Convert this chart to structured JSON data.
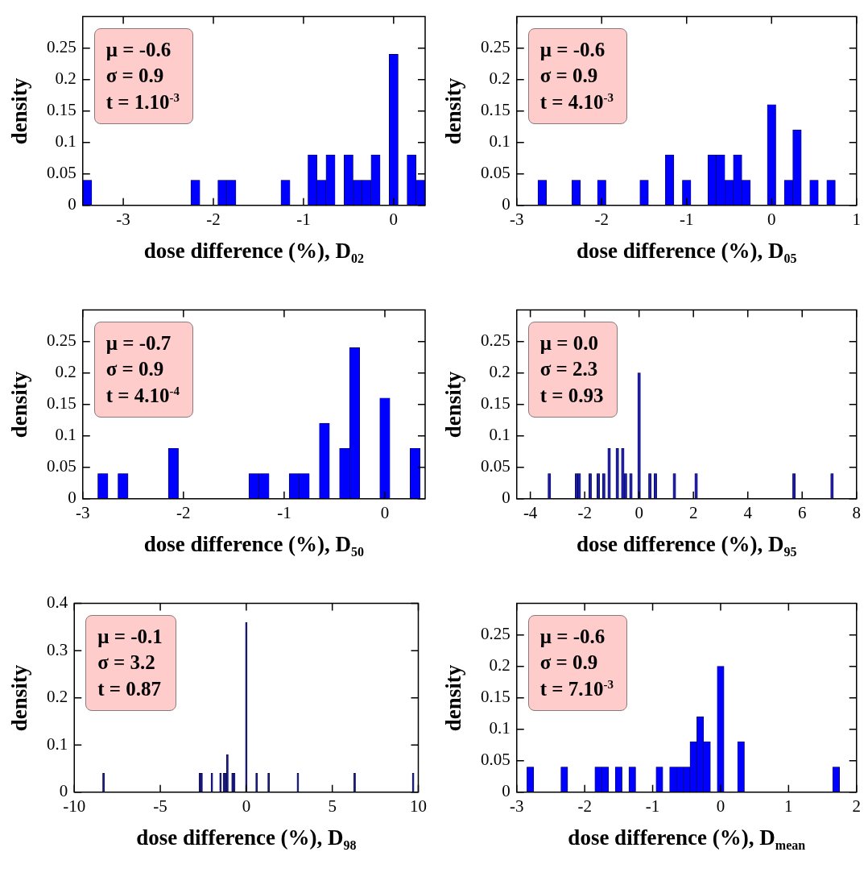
{
  "chart_data": [
    {
      "type": "histogram",
      "xlabel": "dose difference (%), D$_{02}$",
      "ylabel": "density",
      "color": "#0000ff",
      "xlim": [
        -3.45,
        0.35
      ],
      "xticks": [
        -3,
        -2,
        -1,
        0
      ],
      "ylim": [
        0,
        0.3
      ],
      "yticks": [
        0,
        0.05,
        0.1,
        0.15,
        0.2,
        0.25
      ],
      "annotations": [
        "μ = -0.6",
        "σ = 0.9",
        "t = 1.10$^{-3}$"
      ],
      "bins": [
        -3.45,
        -3.35,
        -3.25,
        -3.15,
        -3.05,
        -2.95,
        -2.85,
        -2.75,
        -2.65,
        -2.55,
        -2.45,
        -2.35,
        -2.25,
        -2.15,
        -2.05,
        -1.95,
        -1.85,
        -1.75,
        -1.65,
        -1.55,
        -1.45,
        -1.35,
        -1.25,
        -1.15,
        -1.05,
        -0.95,
        -0.85,
        -0.75,
        -0.65,
        -0.55,
        -0.45,
        -0.35,
        -0.25,
        -0.15,
        -0.05,
        0.05,
        0.15,
        0.25,
        0.35
      ],
      "values": [
        0.04,
        0,
        0,
        0,
        0,
        0,
        0,
        0,
        0,
        0,
        0,
        0,
        0.04,
        0,
        0,
        0.04,
        0.04,
        0,
        0,
        0,
        0,
        0,
        0.04,
        0,
        0,
        0.08,
        0.04,
        0.08,
        0,
        0.08,
        0.04,
        0.04,
        0.08,
        0,
        0.24,
        0,
        0.08,
        0.04
      ]
    },
    {
      "type": "histogram",
      "xlabel": "dose difference (%), D$_{05}$",
      "ylabel": "density",
      "color": "#0000ff",
      "xlim": [
        -3,
        1
      ],
      "xticks": [
        -3,
        -2,
        -1,
        0,
        1
      ],
      "ylim": [
        0,
        0.3
      ],
      "yticks": [
        0,
        0.05,
        0.1,
        0.15,
        0.2,
        0.25
      ],
      "annotations": [
        "μ = -0.6",
        "σ = 0.9",
        "t = 4.10$^{-3}$"
      ],
      "bins": [
        -2.95,
        -2.85,
        -2.75,
        -2.65,
        -2.55,
        -2.45,
        -2.35,
        -2.25,
        -2.15,
        -2.05,
        -1.95,
        -1.85,
        -1.75,
        -1.65,
        -1.55,
        -1.45,
        -1.35,
        -1.25,
        -1.15,
        -1.05,
        -0.95,
        -0.85,
        -0.75,
        -0.65,
        -0.55,
        -0.45,
        -0.35,
        -0.25,
        -0.15,
        -0.05,
        0.05,
        0.15,
        0.25,
        0.35,
        0.45,
        0.55,
        0.65,
        0.75,
        0.85,
        0.95
      ],
      "values": [
        0,
        0,
        0.04,
        0,
        0,
        0,
        0.04,
        0,
        0,
        0.04,
        0,
        0,
        0,
        0,
        0.04,
        0,
        0,
        0.08,
        0,
        0.04,
        0,
        0,
        0.08,
        0.08,
        0.04,
        0.08,
        0.04,
        0,
        0,
        0.16,
        0,
        0.04,
        0.12,
        0,
        0.04,
        0,
        0.04,
        0,
        0
      ]
    },
    {
      "type": "histogram",
      "xlabel": "dose difference (%), D$_{50}$",
      "ylabel": "density",
      "color": "#0000ff",
      "xlim": [
        -3,
        0.4
      ],
      "xticks": [
        -3,
        -2,
        -1,
        0
      ],
      "ylim": [
        0,
        0.3
      ],
      "yticks": [
        0,
        0.05,
        0.1,
        0.15,
        0.2,
        0.25
      ],
      "annotations": [
        "μ = -0.7",
        "σ = 0.9",
        "t = 4.10$^{-4}$"
      ],
      "bins": [
        -2.95,
        -2.85,
        -2.75,
        -2.65,
        -2.55,
        -2.45,
        -2.35,
        -2.25,
        -2.15,
        -2.05,
        -1.95,
        -1.85,
        -1.75,
        -1.65,
        -1.55,
        -1.45,
        -1.35,
        -1.25,
        -1.15,
        -1.05,
        -0.95,
        -0.85,
        -0.75,
        -0.65,
        -0.55,
        -0.45,
        -0.35,
        -0.25,
        -0.15,
        -0.05,
        0.05,
        0.15,
        0.25,
        0.35
      ],
      "values": [
        0,
        0.04,
        0,
        0.04,
        0,
        0,
        0,
        0,
        0.08,
        0,
        0,
        0,
        0,
        0,
        0,
        0,
        0.04,
        0.04,
        0,
        0,
        0.04,
        0.04,
        0,
        0.12,
        0,
        0.08,
        0.24,
        0,
        0,
        0.16,
        0,
        0,
        0.08
      ]
    },
    {
      "type": "histogram",
      "xlabel": "dose difference (%), D$_{95}$",
      "ylabel": "density",
      "color": "#1c1ca8",
      "xlim": [
        -4.5,
        8
      ],
      "xticks": [
        -4,
        -2,
        0,
        2,
        4,
        6,
        8
      ],
      "ylim": [
        0,
        0.3
      ],
      "yticks": [
        0,
        0.05,
        0.1,
        0.15,
        0.2,
        0.25
      ],
      "annotations": [
        "μ = 0.0",
        "σ = 2.3",
        "t = 0.93"
      ],
      "bins": [
        -4.5,
        -3.35,
        -3.25,
        -2.35,
        -2.25,
        -2.15,
        -1.85,
        -1.75,
        -1.55,
        -1.45,
        -1.35,
        -1.25,
        -1.15,
        -1.05,
        -0.85,
        -0.75,
        -0.65,
        -0.55,
        -0.45,
        -0.35,
        -0.25,
        -0.05,
        0.05,
        0.35,
        0.45,
        0.55,
        0.65,
        1.25,
        1.35,
        2.05,
        2.15,
        5.65,
        5.75,
        7.05,
        7.15,
        8
      ],
      "values": [
        0,
        0.04,
        0,
        0.04,
        0.04,
        0,
        0.04,
        0,
        0.04,
        0,
        0.04,
        0,
        0.08,
        0,
        0.08,
        0,
        0.08,
        0.04,
        0,
        0.04,
        0,
        0.2,
        0,
        0.04,
        0,
        0.04,
        0,
        0.04,
        0,
        0.04,
        0,
        0.04,
        0,
        0.04,
        0
      ]
    },
    {
      "type": "histogram",
      "xlabel": "dose difference (%), D$_{98}$",
      "ylabel": "density",
      "color": "#1c1c8c",
      "xlim": [
        -10,
        10
      ],
      "xticks": [
        -10,
        -5,
        0,
        5,
        10
      ],
      "ylim": [
        0,
        0.4
      ],
      "yticks": [
        0,
        0.1,
        0.2,
        0.3,
        0.4
      ],
      "annotations": [
        "μ = -0.1",
        "σ = 3.2",
        "t = 0.87"
      ],
      "bins": [
        -10,
        -8.35,
        -8.25,
        -2.75,
        -2.65,
        -2.55,
        -2.05,
        -1.95,
        -1.55,
        -1.45,
        -1.35,
        -1.25,
        -1.15,
        -1.05,
        -0.85,
        -0.75,
        -0.65,
        -0.05,
        0.05,
        0.55,
        0.65,
        1.25,
        1.35,
        2.95,
        3.05,
        6.25,
        6.35,
        9.65,
        9.75,
        10
      ],
      "values": [
        0,
        0.04,
        0,
        0.04,
        0.04,
        0,
        0.04,
        0,
        0.04,
        0,
        0.04,
        0.04,
        0.08,
        0,
        0.04,
        0.04,
        0,
        0.36,
        0,
        0.04,
        0,
        0.04,
        0,
        0.04,
        0,
        0.04,
        0,
        0.04,
        0
      ]
    },
    {
      "type": "histogram",
      "xlabel": "dose difference (%), D$_{mean}$",
      "ylabel": "density",
      "color": "#0000ff",
      "xlim": [
        -3,
        2
      ],
      "xticks": [
        -3,
        -2,
        -1,
        0,
        1,
        2
      ],
      "ylim": [
        0,
        0.3
      ],
      "yticks": [
        0,
        0.05,
        0.1,
        0.15,
        0.2,
        0.25
      ],
      "annotations": [
        "μ = -0.6",
        "σ = 0.9",
        "t = 7.10$^{-3}$"
      ],
      "bins": [
        -3,
        -2.85,
        -2.75,
        -2.35,
        -2.25,
        -1.85,
        -1.75,
        -1.65,
        -1.55,
        -1.45,
        -1.35,
        -1.25,
        -0.95,
        -0.85,
        -0.75,
        -0.65,
        -0.55,
        -0.45,
        -0.35,
        -0.25,
        -0.15,
        -0.05,
        0.05,
        0.25,
        0.35,
        1.65,
        1.75,
        2
      ],
      "values": [
        0,
        0.04,
        0,
        0.04,
        0,
        0.04,
        0.04,
        0,
        0.04,
        0,
        0.04,
        0,
        0.04,
        0,
        0.04,
        0.04,
        0.04,
        0.08,
        0.12,
        0.08,
        0,
        0.2,
        0,
        0.08,
        0,
        0.04,
        0
      ]
    }
  ]
}
